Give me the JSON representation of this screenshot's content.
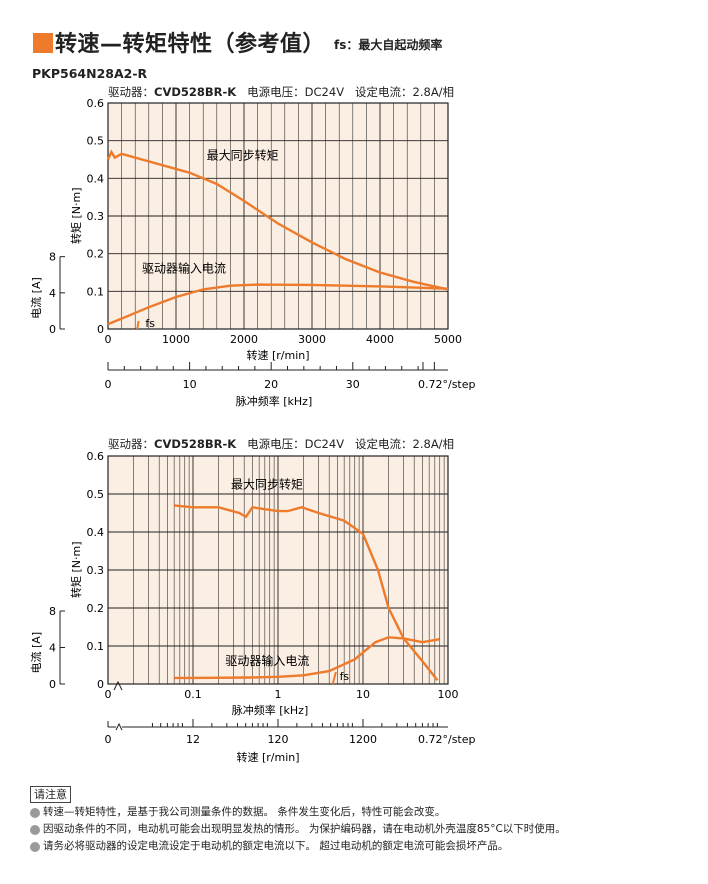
{
  "header": {
    "title": "转速—转矩特性（参考值）",
    "subtitle": "fs：最大自起动频率",
    "model": "PKP564N28A2-R",
    "accent_color": "#ee7a2b"
  },
  "spec_line": {
    "driver_label": "驱动器：",
    "driver_value": "CVD528BR-K",
    "voltage_label": "电源电压：",
    "voltage_value": "DC24V",
    "current_label": "设定电流：",
    "current_value": "2.8A/相"
  },
  "notes": {
    "title": "请注意",
    "items": [
      "转速—转矩特性，是基于我公司测量条件的数据。 条件发生变化后，特性可能会改变。",
      "因驱动条件的不同，电动机可能会出现明显发热的情形。 为保护编码器，请在电动机外壳温度85°C以下时使用。",
      "请务必将驱动器的设定电流设定于电动机的额定电流以下。 超过电动机的额定电流可能会损坏产品。"
    ]
  },
  "chart_data": [
    {
      "type": "line",
      "x_scale": "linear",
      "xlabel": "转速 [r/min]",
      "xlim": [
        0,
        5000
      ],
      "xticks": [
        "0",
        "1000",
        "2000",
        "3000",
        "4000",
        "5000"
      ],
      "ylabel": "转矩 [N·m]",
      "ylim": [
        0,
        0.6
      ],
      "yticks": [
        "0",
        "0.1",
        "0.2",
        "0.3",
        "0.4",
        "0.5",
        "0.6"
      ],
      "y2label": "电流 [A]",
      "y2lim": [
        0,
        8
      ],
      "y2ticks": [
        "0",
        "4",
        "8"
      ],
      "secondary_axis": {
        "label": "脉冲频率 [kHz]",
        "ticks": [
          "0",
          "10",
          "20",
          "30",
          "0.72°/step"
        ]
      },
      "grid": true,
      "series": [
        {
          "name": "最大同步转矩",
          "x": [
            0,
            50,
            100,
            150,
            200,
            300,
            500,
            800,
            1200,
            1600,
            2000,
            2500,
            3000,
            3500,
            4000,
            4500,
            5000
          ],
          "values": [
            0.45,
            0.47,
            0.455,
            0.46,
            0.465,
            0.46,
            0.45,
            0.435,
            0.415,
            0.385,
            0.34,
            0.28,
            0.23,
            0.185,
            0.15,
            0.125,
            0.105
          ]
        },
        {
          "name": "驱动器输入电流",
          "x": [
            0,
            300,
            600,
            1000,
            1400,
            1800,
            2200,
            3000,
            4000,
            5000
          ],
          "values": [
            0.013,
            0.035,
            0.058,
            0.085,
            0.105,
            0.115,
            0.118,
            0.117,
            0.113,
            0.107
          ]
        }
      ],
      "annotations": [
        "最大同步转矩",
        "驱动器输入电流",
        "fs"
      ]
    },
    {
      "type": "line",
      "x_scale": "log",
      "xlabel": "脉冲频率 [kHz]",
      "xlim": [
        0.01,
        100
      ],
      "xticks": [
        "0.1",
        "1",
        "10",
        "100"
      ],
      "ylabel": "转矩 [N·m]",
      "ylim": [
        0,
        0.6
      ],
      "yticks": [
        "0",
        "0.1",
        "0.2",
        "0.3",
        "0.4",
        "0.5",
        "0.6"
      ],
      "y2label": "电流 [A]",
      "y2lim": [
        0,
        8
      ],
      "y2ticks": [
        "0",
        "4",
        "8"
      ],
      "secondary_axis": {
        "label": "转速 [r/min]",
        "ticks": [
          "0",
          "12",
          "120",
          "1200",
          "0.72°/step"
        ]
      },
      "grid": true,
      "series": [
        {
          "name": "最大同步转矩",
          "x": [
            0.06,
            0.1,
            0.2,
            0.35,
            0.42,
            0.5,
            0.7,
            1.0,
            1.3,
            1.9,
            3.0,
            6.0,
            10,
            15,
            20,
            30,
            50,
            75
          ],
          "values": [
            0.47,
            0.465,
            0.465,
            0.45,
            0.44,
            0.465,
            0.46,
            0.455,
            0.455,
            0.465,
            0.45,
            0.43,
            0.395,
            0.3,
            0.2,
            0.12,
            0.06,
            0.01
          ]
        },
        {
          "name": "驱动器输入电流",
          "x": [
            0.06,
            0.1,
            0.5,
            1.0,
            2.0,
            4.0,
            8.0,
            14,
            20,
            30,
            50,
            80
          ],
          "values": [
            0.016,
            0.016,
            0.017,
            0.019,
            0.023,
            0.034,
            0.065,
            0.11,
            0.123,
            0.12,
            0.11,
            0.118
          ]
        }
      ],
      "annotations": [
        "最大同步转矩",
        "驱动器输入电流",
        "fs"
      ]
    }
  ]
}
